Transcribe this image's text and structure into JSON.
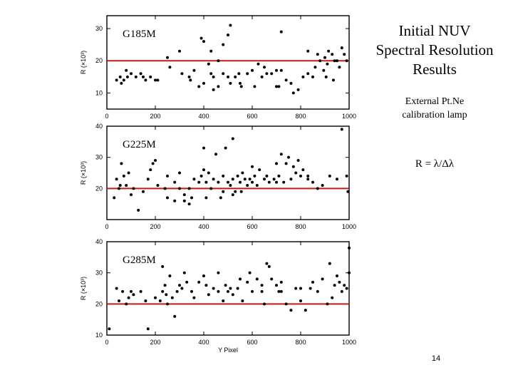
{
  "slide": {
    "title": "Initial NUV\nSpectral Resolution\nResults",
    "lamp_text": "External Pt.Ne\ncalibration lamp",
    "formula": "R = λ/Δλ",
    "page_number": "14"
  },
  "chart_data": [
    {
      "type": "scatter",
      "label": "G185M",
      "xlabel": "",
      "ylabel": "R (×10³)",
      "xlim": [
        0,
        1000
      ],
      "ylim": [
        5,
        34
      ],
      "xticks": [
        0,
        200,
        400,
        600,
        800,
        1000
      ],
      "yticks": [
        10,
        20,
        30
      ],
      "threshold": 20,
      "points": [
        [
          40,
          14
        ],
        [
          55,
          15
        ],
        [
          60,
          13
        ],
        [
          70,
          14
        ],
        [
          80,
          17
        ],
        [
          85,
          15
        ],
        [
          100,
          16
        ],
        [
          120,
          15
        ],
        [
          140,
          16
        ],
        [
          150,
          15
        ],
        [
          160,
          14
        ],
        [
          180,
          15
        ],
        [
          200,
          14
        ],
        [
          210,
          14
        ],
        [
          260,
          18
        ],
        [
          310,
          16
        ],
        [
          340,
          15
        ],
        [
          345,
          14
        ],
        [
          360,
          17
        ],
        [
          380,
          12
        ],
        [
          400,
          13
        ],
        [
          420,
          19
        ],
        [
          430,
          16
        ],
        [
          440,
          11
        ],
        [
          460,
          20
        ],
        [
          480,
          16
        ],
        [
          500,
          15
        ],
        [
          510,
          13
        ],
        [
          530,
          15
        ],
        [
          550,
          13
        ],
        [
          555,
          12
        ],
        [
          580,
          16
        ],
        [
          600,
          17
        ],
        [
          610,
          12
        ],
        [
          640,
          15
        ],
        [
          650,
          18
        ],
        [
          660,
          16
        ],
        [
          680,
          16
        ],
        [
          700,
          17
        ],
        [
          710,
          12
        ],
        [
          720,
          17
        ],
        [
          740,
          14
        ],
        [
          760,
          13
        ],
        [
          770,
          10
        ],
        [
          790,
          11
        ],
        [
          810,
          15
        ],
        [
          830,
          16
        ],
        [
          850,
          15
        ],
        [
          860,
          18
        ],
        [
          880,
          20
        ],
        [
          900,
          21
        ],
        [
          910,
          19
        ],
        [
          930,
          22
        ],
        [
          950,
          20
        ],
        [
          970,
          24
        ],
        [
          980,
          22
        ],
        [
          390,
          27
        ],
        [
          400,
          26
        ],
        [
          430,
          23
        ],
        [
          480,
          25
        ],
        [
          500,
          28
        ],
        [
          510,
          31
        ],
        [
          720,
          29
        ],
        [
          830,
          23
        ],
        [
          870,
          22
        ],
        [
          915,
          23
        ],
        [
          940,
          20
        ],
        [
          960,
          18
        ],
        [
          990,
          20
        ],
        [
          895,
          17
        ],
        [
          905,
          15
        ],
        [
          935,
          14
        ],
        [
          300,
          23
        ],
        [
          250,
          21
        ],
        [
          440,
          15
        ],
        [
          460,
          12
        ],
        [
          545,
          16
        ],
        [
          625,
          19
        ],
        [
          700,
          12
        ]
      ]
    },
    {
      "type": "scatter",
      "label": "G225M",
      "xlabel": "",
      "ylabel": "R (×10³)",
      "xlim": [
        0,
        1000
      ],
      "ylim": [
        10,
        40
      ],
      "xticks": [
        0,
        200,
        400,
        600,
        800,
        1000
      ],
      "yticks": [
        20,
        30,
        40
      ],
      "threshold": 20,
      "points": [
        [
          30,
          17
        ],
        [
          40,
          23
        ],
        [
          50,
          20
        ],
        [
          55,
          21
        ],
        [
          60,
          28
        ],
        [
          70,
          24
        ],
        [
          80,
          21
        ],
        [
          90,
          25
        ],
        [
          100,
          18
        ],
        [
          110,
          20
        ],
        [
          130,
          13
        ],
        [
          150,
          19
        ],
        [
          170,
          23
        ],
        [
          180,
          26
        ],
        [
          190,
          28
        ],
        [
          200,
          29
        ],
        [
          210,
          21
        ],
        [
          240,
          20
        ],
        [
          250,
          24
        ],
        [
          280,
          22
        ],
        [
          300,
          25
        ],
        [
          320,
          18
        ],
        [
          340,
          20
        ],
        [
          350,
          17
        ],
        [
          360,
          23
        ],
        [
          380,
          22
        ],
        [
          390,
          24
        ],
        [
          400,
          26
        ],
        [
          410,
          22
        ],
        [
          420,
          25
        ],
        [
          430,
          20
        ],
        [
          440,
          23
        ],
        [
          460,
          22
        ],
        [
          480,
          24
        ],
        [
          500,
          22
        ],
        [
          510,
          21
        ],
        [
          520,
          23
        ],
        [
          530,
          19
        ],
        [
          540,
          24
        ],
        [
          550,
          22
        ],
        [
          560,
          25
        ],
        [
          570,
          23
        ],
        [
          580,
          21
        ],
        [
          590,
          23
        ],
        [
          600,
          22
        ],
        [
          610,
          24
        ],
        [
          620,
          21
        ],
        [
          630,
          26
        ],
        [
          650,
          23
        ],
        [
          670,
          22
        ],
        [
          690,
          23
        ],
        [
          700,
          22
        ],
        [
          710,
          24
        ],
        [
          720,
          31
        ],
        [
          730,
          22
        ],
        [
          740,
          28
        ],
        [
          760,
          23
        ],
        [
          770,
          27
        ],
        [
          790,
          29
        ],
        [
          800,
          24
        ],
        [
          810,
          26
        ],
        [
          830,
          23
        ],
        [
          850,
          22
        ],
        [
          870,
          20
        ],
        [
          890,
          21
        ],
        [
          920,
          24
        ],
        [
          950,
          23
        ],
        [
          970,
          39
        ],
        [
          990,
          24
        ],
        [
          995,
          19
        ],
        [
          490,
          33
        ],
        [
          520,
          36
        ],
        [
          450,
          31
        ],
        [
          400,
          33
        ],
        [
          600,
          27
        ],
        [
          660,
          24
        ],
        [
          700,
          28
        ],
        [
          750,
          30
        ],
        [
          780,
          25
        ],
        [
          830,
          24
        ],
        [
          300,
          20
        ],
        [
          280,
          16
        ],
        [
          250,
          17
        ],
        [
          410,
          17
        ],
        [
          470,
          17
        ],
        [
          520,
          18
        ],
        [
          555,
          19
        ],
        [
          480,
          19
        ],
        [
          320,
          16
        ],
        [
          340,
          15
        ]
      ]
    },
    {
      "type": "scatter",
      "label": "G285M",
      "xlabel": "Y Pixel",
      "ylabel": "R (×10³)",
      "xlim": [
        0,
        1000
      ],
      "ylim": [
        10,
        40
      ],
      "xticks": [
        0,
        200,
        400,
        600,
        800,
        1000
      ],
      "yticks": [
        10,
        20,
        30,
        40
      ],
      "threshold": 20,
      "points": [
        [
          10,
          12
        ],
        [
          40,
          25
        ],
        [
          50,
          21
        ],
        [
          65,
          24
        ],
        [
          80,
          20
        ],
        [
          90,
          22
        ],
        [
          100,
          24
        ],
        [
          110,
          23
        ],
        [
          140,
          24
        ],
        [
          160,
          21
        ],
        [
          170,
          12
        ],
        [
          200,
          22
        ],
        [
          230,
          24
        ],
        [
          240,
          26
        ],
        [
          245,
          23
        ],
        [
          250,
          20
        ],
        [
          270,
          22
        ],
        [
          280,
          16
        ],
        [
          290,
          24
        ],
        [
          300,
          26
        ],
        [
          310,
          25
        ],
        [
          330,
          27
        ],
        [
          350,
          24
        ],
        [
          380,
          27
        ],
        [
          400,
          29
        ],
        [
          410,
          26
        ],
        [
          420,
          23
        ],
        [
          440,
          25
        ],
        [
          460,
          24
        ],
        [
          480,
          21
        ],
        [
          490,
          26
        ],
        [
          500,
          24
        ],
        [
          510,
          25
        ],
        [
          520,
          23
        ],
        [
          540,
          25
        ],
        [
          560,
          21
        ],
        [
          580,
          27
        ],
        [
          600,
          24
        ],
        [
          620,
          28
        ],
        [
          640,
          26
        ],
        [
          650,
          20
        ],
        [
          670,
          32
        ],
        [
          680,
          28
        ],
        [
          700,
          26
        ],
        [
          710,
          24
        ],
        [
          720,
          27
        ],
        [
          740,
          20
        ],
        [
          760,
          18
        ],
        [
          780,
          25
        ],
        [
          800,
          25
        ],
        [
          820,
          18
        ],
        [
          840,
          25
        ],
        [
          850,
          27
        ],
        [
          870,
          24
        ],
        [
          890,
          28
        ],
        [
          910,
          20
        ],
        [
          920,
          33
        ],
        [
          940,
          26
        ],
        [
          950,
          29
        ],
        [
          960,
          27
        ],
        [
          970,
          24
        ],
        [
          980,
          26
        ],
        [
          990,
          25
        ],
        [
          1000,
          38
        ],
        [
          230,
          32
        ],
        [
          260,
          29
        ],
        [
          460,
          30
        ],
        [
          550,
          28
        ],
        [
          660,
          33
        ],
        [
          930,
          22
        ],
        [
          720,
          24
        ],
        [
          800,
          21
        ],
        [
          590,
          30
        ],
        [
          640,
          24
        ],
        [
          360,
          22
        ],
        [
          320,
          30
        ],
        [
          220,
          21
        ],
        [
          1000,
          30
        ]
      ]
    }
  ]
}
